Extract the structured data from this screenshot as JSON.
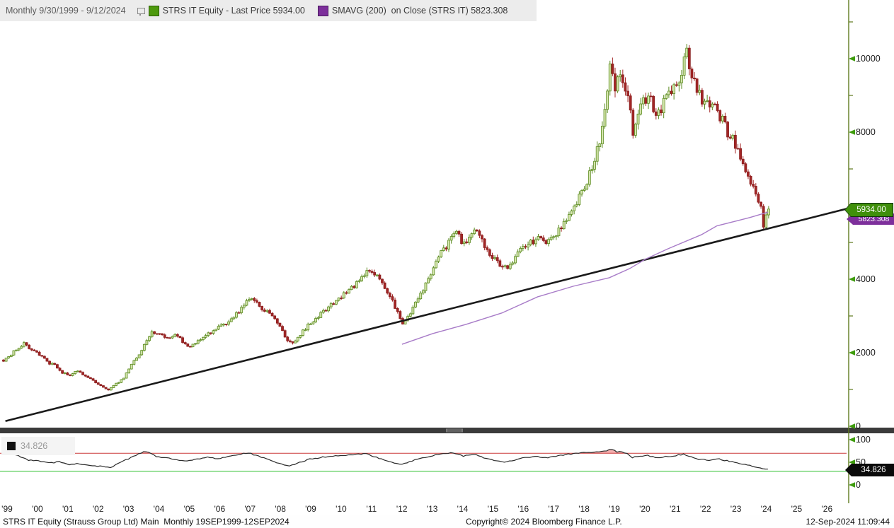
{
  "header": {
    "range_label": "Monthly 9/30/1999 - 9/12/2024",
    "series1": {
      "label": "STRS IT Equity - Last Price",
      "value": "5934.00",
      "color": "#4e9a0e"
    },
    "series2": {
      "label": "SMAVG (200)  on Close (STRS IT)",
      "value": "5823.308",
      "color": "#7d2f9b"
    }
  },
  "price_axis": {
    "major_ticks": [
      10000,
      8000,
      4000,
      2000,
      0
    ],
    "minor_ticks": [
      11000,
      9000,
      7000,
      5000,
      3000,
      1000
    ],
    "last_price_tag": "5934.00",
    "sma_tag": "5823.308"
  },
  "indicator": {
    "tag": "34.826",
    "legend_value": "34.826",
    "axis_ticks": [
      100,
      50,
      0
    ],
    "overbought": 70,
    "oversold": 30,
    "last": 34.826
  },
  "x_axis": {
    "year_labels": [
      "'99",
      "'00",
      "'01",
      "'02",
      "'03",
      "'04",
      "'05",
      "'06",
      "'07",
      "'08",
      "'09",
      "'10",
      "'11",
      "'12",
      "'13",
      "'14",
      "'15",
      "'16",
      "'17",
      "'18",
      "'19",
      "'20",
      "'21",
      "'22",
      "'23",
      "'24",
      "'25",
      "'26"
    ]
  },
  "status_bar": {
    "left": "STRS IT Equity (Strauss Group Ltd) Main  Monthly 19SEP1999-12SEP2024",
    "center": "Copyright© 2024 Bloomberg Finance L.P.",
    "right": "12-Sep-2024 11:09:44"
  },
  "colors": {
    "up_stroke": "#5a8a1e",
    "up_fill": "#d6e6ae",
    "down_stroke": "#8a1f1f",
    "down_fill": "#a32626",
    "sma_line": "#a87cc8",
    "trend_line": "#1a1a1a",
    "axis_line": "#5f7a1e",
    "tick_arrow": "#3f9c0d",
    "band_upper": "#cc3a3a",
    "band_lower": "#2fbf2f",
    "indicator_line": "#2a2a2a",
    "overbought_fill": "rgba(230,80,80,0.45)",
    "last_price_bg": "#3f8f0a",
    "sma_tag_bg": "#7d2f9b",
    "indicator_tag_bg": "#0a0a0a"
  },
  "chart_data": {
    "type": "candlestick",
    "title": "STRS IT Equity - Last Price (Monthly)",
    "x_start": "Sep 1999",
    "x_end": "Sep 2024",
    "months": 300,
    "ylim": [
      0,
      11500
    ],
    "last_price": 5934.0,
    "price_anchors": [
      [
        0,
        1750
      ],
      [
        2,
        1900
      ],
      [
        5,
        2100
      ],
      [
        8,
        2250
      ],
      [
        11,
        2050
      ],
      [
        14,
        1950
      ],
      [
        17,
        1750
      ],
      [
        20,
        1650
      ],
      [
        23,
        1450
      ],
      [
        26,
        1400
      ],
      [
        29,
        1500
      ],
      [
        32,
        1350
      ],
      [
        35,
        1250
      ],
      [
        38,
        1100
      ],
      [
        41,
        1000
      ],
      [
        44,
        1150
      ],
      [
        47,
        1300
      ],
      [
        50,
        1700
      ],
      [
        53,
        1950
      ],
      [
        56,
        2350
      ],
      [
        58,
        2600
      ],
      [
        61,
        2500
      ],
      [
        64,
        2400
      ],
      [
        67,
        2500
      ],
      [
        70,
        2300
      ],
      [
        73,
        2150
      ],
      [
        76,
        2350
      ],
      [
        79,
        2450
      ],
      [
        82,
        2600
      ],
      [
        85,
        2750
      ],
      [
        88,
        2850
      ],
      [
        91,
        3050
      ],
      [
        94,
        3300
      ],
      [
        96,
        3500
      ],
      [
        99,
        3350
      ],
      [
        102,
        3150
      ],
      [
        105,
        3000
      ],
      [
        108,
        2700
      ],
      [
        111,
        2350
      ],
      [
        113,
        2250
      ],
      [
        116,
        2500
      ],
      [
        119,
        2750
      ],
      [
        122,
        2950
      ],
      [
        125,
        3100
      ],
      [
        128,
        3300
      ],
      [
        131,
        3500
      ],
      [
        134,
        3650
      ],
      [
        137,
        3800
      ],
      [
        140,
        4000
      ],
      [
        143,
        4250
      ],
      [
        146,
        4050
      ],
      [
        149,
        3800
      ],
      [
        152,
        3400
      ],
      [
        154,
        3100
      ],
      [
        156,
        2750
      ],
      [
        159,
        3100
      ],
      [
        162,
        3500
      ],
      [
        165,
        3850
      ],
      [
        168,
        4300
      ],
      [
        171,
        4700
      ],
      [
        174,
        5000
      ],
      [
        177,
        5250
      ],
      [
        180,
        4950
      ],
      [
        183,
        5150
      ],
      [
        185,
        5350
      ],
      [
        188,
        4900
      ],
      [
        191,
        4600
      ],
      [
        194,
        4400
      ],
      [
        197,
        4350
      ],
      [
        200,
        4600
      ],
      [
        203,
        4850
      ],
      [
        206,
        5000
      ],
      [
        209,
        5100
      ],
      [
        212,
        4950
      ],
      [
        215,
        5150
      ],
      [
        218,
        5450
      ],
      [
        221,
        5700
      ],
      [
        224,
        6100
      ],
      [
        227,
        6500
      ],
      [
        230,
        7000
      ],
      [
        233,
        7800
      ],
      [
        235,
        8700
      ],
      [
        237,
        9750
      ],
      [
        239,
        9200
      ],
      [
        241,
        9500
      ],
      [
        243,
        9000
      ],
      [
        245,
        8700
      ],
      [
        246,
        7900
      ],
      [
        248,
        8500
      ],
      [
        250,
        8800
      ],
      [
        252,
        9000
      ],
      [
        254,
        8700
      ],
      [
        256,
        8500
      ],
      [
        258,
        8800
      ],
      [
        260,
        9000
      ],
      [
        262,
        9200
      ],
      [
        264,
        9500
      ],
      [
        266,
        9900
      ],
      [
        267,
        10150
      ],
      [
        269,
        9500
      ],
      [
        271,
        9200
      ],
      [
        273,
        8900
      ],
      [
        275,
        8700
      ],
      [
        277,
        8900
      ],
      [
        279,
        8600
      ],
      [
        281,
        8300
      ],
      [
        283,
        8000
      ],
      [
        285,
        7800
      ],
      [
        287,
        7500
      ],
      [
        289,
        7100
      ],
      [
        291,
        6800
      ],
      [
        293,
        6500
      ],
      [
        295,
        6200
      ],
      [
        296,
        5900
      ],
      [
        297,
        5500
      ],
      [
        298,
        5750
      ],
      [
        299,
        5934
      ]
    ],
    "sma200": {
      "value_last": 5823.308,
      "points": [
        [
          156,
          2230
        ],
        [
          168,
          2520
        ],
        [
          181,
          2770
        ],
        [
          195,
          3080
        ],
        [
          209,
          3520
        ],
        [
          223,
          3810
        ],
        [
          237,
          4040
        ],
        [
          245,
          4290
        ],
        [
          251,
          4540
        ],
        [
          260,
          4830
        ],
        [
          273,
          5210
        ],
        [
          279,
          5450
        ],
        [
          287,
          5590
        ],
        [
          292,
          5680
        ],
        [
          299,
          5823
        ]
      ]
    },
    "trendline": {
      "from_month": 1,
      "from_price": 140,
      "to_month": 330,
      "to_price": 5920
    },
    "indicator_anchors": [
      [
        0,
        70
      ],
      [
        3,
        73
      ],
      [
        6,
        64
      ],
      [
        10,
        55
      ],
      [
        14,
        53
      ],
      [
        18,
        48
      ],
      [
        22,
        51
      ],
      [
        26,
        45
      ],
      [
        30,
        47
      ],
      [
        34,
        43
      ],
      [
        38,
        41
      ],
      [
        42,
        38
      ],
      [
        46,
        50
      ],
      [
        50,
        60
      ],
      [
        54,
        71
      ],
      [
        56,
        74
      ],
      [
        60,
        63
      ],
      [
        64,
        60
      ],
      [
        68,
        55
      ],
      [
        72,
        52
      ],
      [
        76,
        57
      ],
      [
        80,
        61
      ],
      [
        84,
        57
      ],
      [
        88,
        62
      ],
      [
        92,
        67
      ],
      [
        96,
        71
      ],
      [
        100,
        63
      ],
      [
        104,
        57
      ],
      [
        108,
        47
      ],
      [
        112,
        41
      ],
      [
        116,
        50
      ],
      [
        120,
        57
      ],
      [
        126,
        62
      ],
      [
        132,
        65
      ],
      [
        138,
        67
      ],
      [
        142,
        69
      ],
      [
        146,
        61
      ],
      [
        150,
        54
      ],
      [
        154,
        47
      ],
      [
        156,
        45
      ],
      [
        160,
        53
      ],
      [
        164,
        60
      ],
      [
        168,
        65
      ],
      [
        172,
        69
      ],
      [
        176,
        71
      ],
      [
        180,
        64
      ],
      [
        184,
        68
      ],
      [
        188,
        60
      ],
      [
        192,
        54
      ],
      [
        196,
        50
      ],
      [
        200,
        55
      ],
      [
        204,
        60
      ],
      [
        208,
        63
      ],
      [
        212,
        60
      ],
      [
        216,
        63
      ],
      [
        220,
        67
      ],
      [
        224,
        70
      ],
      [
        228,
        71
      ],
      [
        232,
        72
      ],
      [
        236,
        76
      ],
      [
        238,
        78
      ],
      [
        240,
        73
      ],
      [
        242,
        74
      ],
      [
        244,
        69
      ],
      [
        246,
        60
      ],
      [
        248,
        63
      ],
      [
        252,
        65
      ],
      [
        256,
        60
      ],
      [
        260,
        63
      ],
      [
        264,
        66
      ],
      [
        266,
        68
      ],
      [
        268,
        63
      ],
      [
        272,
        57
      ],
      [
        276,
        55
      ],
      [
        280,
        57
      ],
      [
        284,
        52
      ],
      [
        288,
        48
      ],
      [
        292,
        43
      ],
      [
        296,
        38
      ],
      [
        298,
        35
      ],
      [
        299,
        34.826
      ]
    ]
  }
}
